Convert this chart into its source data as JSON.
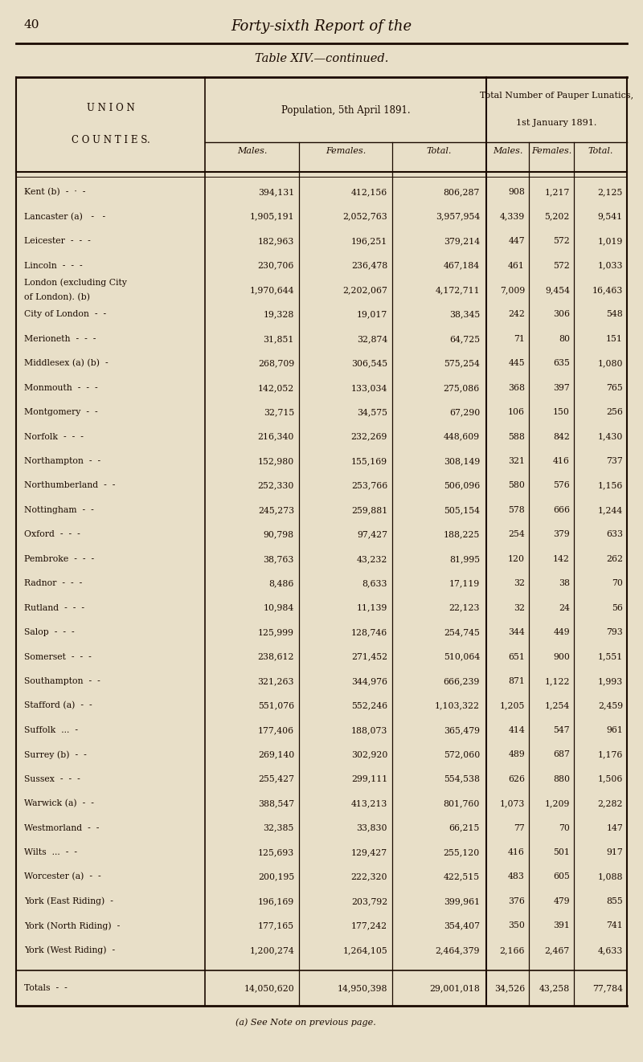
{
  "page_number": "40",
  "page_header": "Forty-sixth Report of the",
  "table_title": "Table XIV.—continued.",
  "col_group1_header": "Population, 5th April 1891.",
  "col_group2_header1": "Total Number of Pauper Lunatics,",
  "col_group2_header2": "1st January 1891.",
  "sub_headers": [
    "Males.",
    "Females.",
    "Total.",
    "Males.",
    "Females.",
    "Total."
  ],
  "footnote": "(a) See Note on previous page.",
  "rows": [
    [
      "Kent (b)  -  ·  -",
      "394,131",
      "412,156",
      "806,287",
      "908",
      "1,217",
      "2,125"
    ],
    [
      "Lancaster (a)   -   -",
      "1,905,191",
      "2,052,763",
      "3,957,954",
      "4,339",
      "5,202",
      "9,541"
    ],
    [
      "Leicester  -  -  -",
      "182,963",
      "196,251",
      "379,214",
      "447",
      "572",
      "1,019"
    ],
    [
      "Lincoln  -  -  -",
      "230,706",
      "236,478",
      "467,184",
      "461",
      "572",
      "1,033"
    ],
    [
      "London (excluding City\nof London). (b)",
      "1,970,644",
      "2,202,067",
      "4,172,711",
      "7,009",
      "9,454",
      "16,463"
    ],
    [
      "City of London  -  -",
      "19,328",
      "19,017",
      "38,345",
      "242",
      "306",
      "548"
    ],
    [
      "Merioneth  -  -  -",
      "31,851",
      "32,874",
      "64,725",
      "71",
      "80",
      "151"
    ],
    [
      "Middlesex (a) (b)  -",
      "268,709",
      "306,545",
      "575,254",
      "445",
      "635",
      "1,080"
    ],
    [
      "Monmouth  -  -  -",
      "142,052",
      "133,034",
      "275,086",
      "368",
      "397",
      "765"
    ],
    [
      "Montgomery  -  -",
      "32,715",
      "34,575",
      "67,290",
      "106",
      "150",
      "256"
    ],
    [
      "Norfolk  -  -  -",
      "216,340",
      "232,269",
      "448,609",
      "588",
      "842",
      "1,430"
    ],
    [
      "Northampton  -  -",
      "152,980",
      "155,169",
      "308,149",
      "321",
      "416",
      "737"
    ],
    [
      "Northumberland  -  -",
      "252,330",
      "253,766",
      "506,096",
      "580",
      "576",
      "1,156"
    ],
    [
      "Nottingham  -  -",
      "245,273",
      "259,881",
      "505,154",
      "578",
      "666",
      "1,244"
    ],
    [
      "Oxford  -  -  -",
      "90,798",
      "97,427",
      "188,225",
      "254",
      "379",
      "633"
    ],
    [
      "Pembroke  -  -  -",
      "38,763",
      "43,232",
      "81,995",
      "120",
      "142",
      "262"
    ],
    [
      "Radnor  -  -  -",
      "8,486",
      "8,633",
      "17,119",
      "32",
      "38",
      "70"
    ],
    [
      "Rutland  -  -  -",
      "10,984",
      "11,139",
      "22,123",
      "32",
      "24",
      "56"
    ],
    [
      "Salop  -  -  -",
      "125,999",
      "128,746",
      "254,745",
      "344",
      "449",
      "793"
    ],
    [
      "Somerset  -  -  -",
      "238,612",
      "271,452",
      "510,064",
      "651",
      "900",
      "1,551"
    ],
    [
      "Southampton  -  -",
      "321,263",
      "344,976",
      "666,239",
      "871",
      "1,122",
      "1,993"
    ],
    [
      "Stafford (a)  -  -",
      "551,076",
      "552,246",
      "1,103,322",
      "1,205",
      "1,254",
      "2,459"
    ],
    [
      "Suffolk  ...  -",
      "177,406",
      "188,073",
      "365,479",
      "414",
      "547",
      "961"
    ],
    [
      "Surrey (b)  -  -",
      "269,140",
      "302,920",
      "572,060",
      "489",
      "687",
      "1,176"
    ],
    [
      "Sussex  -  -  -",
      "255,427",
      "299,111",
      "554,538",
      "626",
      "880",
      "1,506"
    ],
    [
      "Warwick (a)  -  -",
      "388,547",
      "413,213",
      "801,760",
      "1,073",
      "1,209",
      "2,282"
    ],
    [
      "Westmorland  -  -",
      "32,385",
      "33,830",
      "66,215",
      "77",
      "70",
      "147"
    ],
    [
      "Wilts  ...  -  -",
      "125,693",
      "129,427",
      "255,120",
      "416",
      "501",
      "917"
    ],
    [
      "Worcester (a)  -  -",
      "200,195",
      "222,320",
      "422,515",
      "483",
      "605",
      "1,088"
    ],
    [
      "York (East Riding)  -",
      "196,169",
      "203,792",
      "399,961",
      "376",
      "479",
      "855"
    ],
    [
      "York (North Riding)  -",
      "177,165",
      "177,242",
      "354,407",
      "350",
      "391",
      "741"
    ],
    [
      "York (West Riding)  -",
      "1,200,274",
      "1,264,105",
      "2,464,379",
      "2,166",
      "2,467",
      "4,633"
    ]
  ],
  "totals_row": [
    "Totals  -  -",
    "14,050,620",
    "14,950,398",
    "29,001,018",
    "34,526",
    "43,258",
    "77,784"
  ],
  "bg_color": "#e8dfc8",
  "text_color": "#1a0a00",
  "line_color": "#1a0a00"
}
